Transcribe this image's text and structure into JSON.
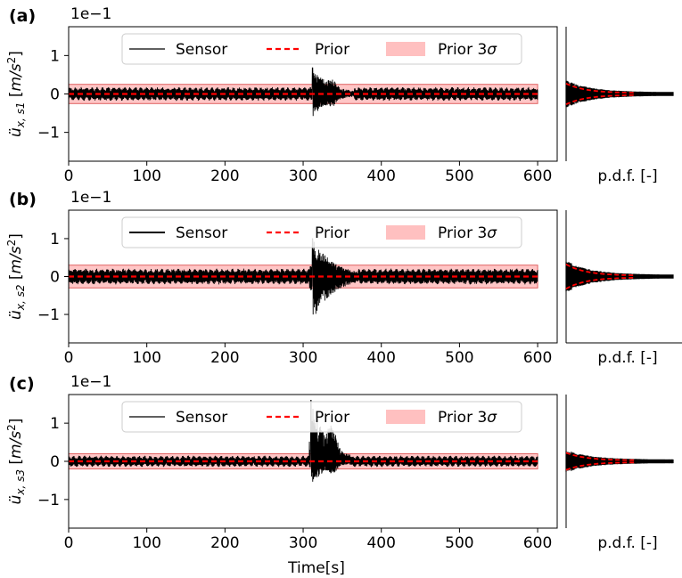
{
  "figure": {
    "x_label": "Time[s]",
    "pdf_label": "p.d.f. [-]",
    "multiplier": "1e−1"
  },
  "legend": {
    "sensor": "Sensor",
    "prior": "Prior",
    "prior_band": "Prior 3"
  },
  "colors": {
    "sensor": "#000000",
    "prior": "#ff0000",
    "band_fill": "#ffc0c0",
    "band_edge": "#e06060"
  },
  "chart_data": [
    {
      "panel": "(a)",
      "type": "line",
      "ylabel": "ü_{x,s1} [m/s²]",
      "ylabel_sub": "x, s1",
      "xlim": [
        0,
        625
      ],
      "ylim": [
        -1.75,
        1.75
      ],
      "xticks": [
        0,
        100,
        200,
        300,
        400,
        500,
        600
      ],
      "yticks": [
        -1,
        0,
        1
      ],
      "band_3sigma": [
        -0.25,
        0.25
      ],
      "prior_mean": 0,
      "baseline_amplitude": 0.15,
      "burst": {
        "start": 310,
        "end": 365,
        "peak_time": 312,
        "peak": 0.68,
        "min": -0.6
      },
      "pdf": {
        "type": "histogram",
        "prior_sigma": 0.083
      }
    },
    {
      "panel": "(b)",
      "type": "line",
      "ylabel": "ü_{x,s2} [m/s²]",
      "ylabel_sub": "x, s2",
      "xlim": [
        0,
        625
      ],
      "ylim": [
        -1.75,
        1.75
      ],
      "xticks": [
        0,
        100,
        200,
        300,
        400,
        500,
        600
      ],
      "yticks": [
        -1,
        0,
        1
      ],
      "band_3sigma": [
        -0.3,
        0.3
      ],
      "prior_mean": 0,
      "baseline_amplitude": 0.18,
      "burst": {
        "start": 308,
        "end": 370,
        "peak_time": 312,
        "peak": 1.0,
        "min": -1.15
      },
      "pdf": {
        "type": "histogram",
        "prior_sigma": 0.1
      }
    },
    {
      "panel": "(c)",
      "type": "line",
      "ylabel": "ü_{x,s3} [m/s²]",
      "ylabel_sub": "x, s3",
      "xlim": [
        0,
        625
      ],
      "ylim": [
        -1.75,
        1.75
      ],
      "xticks": [
        0,
        100,
        200,
        300,
        400,
        500,
        600
      ],
      "yticks": [
        -1,
        0,
        1
      ],
      "band_3sigma": [
        -0.2,
        0.2
      ],
      "prior_mean": 0,
      "baseline_amplitude": 0.12,
      "burst": {
        "start": 308,
        "end": 360,
        "peak_time": 310,
        "peak": 1.6,
        "min": -0.6
      },
      "pdf": {
        "type": "histogram",
        "prior_sigma": 0.067
      }
    }
  ]
}
